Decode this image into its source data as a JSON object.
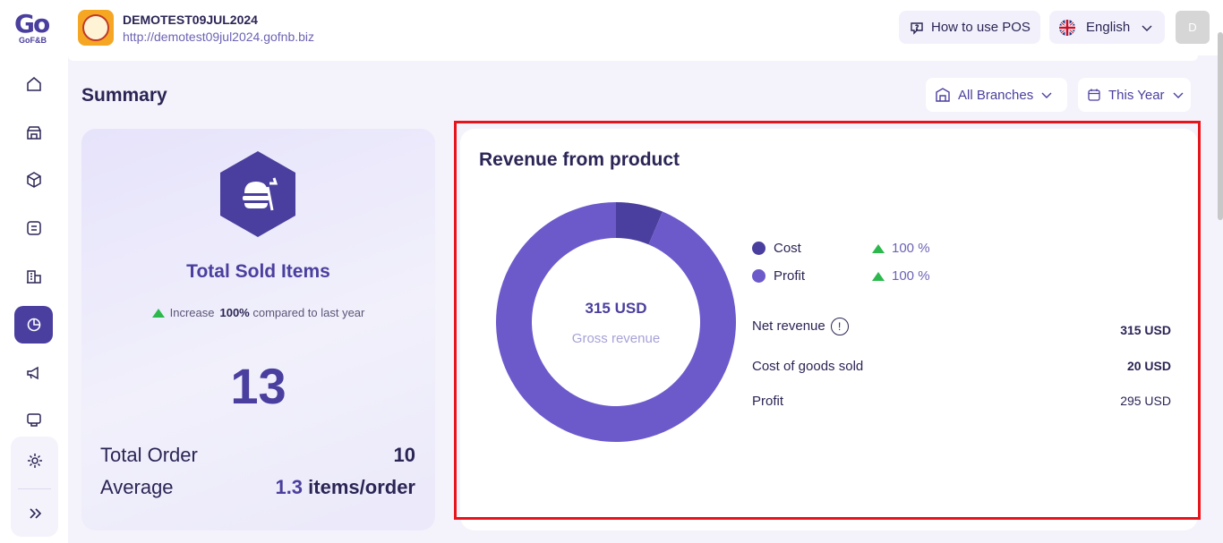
{
  "brand": {
    "logo_text": "Go",
    "logo_sub": "GoF&B"
  },
  "header": {
    "store_name": "DEMOTEST09JUL2024",
    "store_url": "http://demotest09jul2024.gofnb.biz",
    "help_label": "How to use POS",
    "language_label": "English",
    "avatar_initial": "D"
  },
  "sidebar": {
    "items": [
      {
        "icon": "home-icon"
      },
      {
        "icon": "store-icon"
      },
      {
        "icon": "box-icon"
      },
      {
        "icon": "list-icon"
      },
      {
        "icon": "building-icon"
      },
      {
        "icon": "report-icon",
        "active": true
      },
      {
        "icon": "megaphone-icon"
      },
      {
        "icon": "pos-icon"
      },
      {
        "icon": "settings-icon"
      },
      {
        "icon": "expand-icon"
      }
    ]
  },
  "summary": {
    "title": "Summary",
    "branch_filter": "All Branches",
    "period_filter": "This Year"
  },
  "sold_items": {
    "title": "Total Sold Items",
    "increase_prefix": "Increase",
    "increase_value": "100%",
    "increase_suffix": "compared to last year",
    "total": "13",
    "total_order_label": "Total Order",
    "total_order_value": "10",
    "average_label": "Average",
    "average_value": "1.3",
    "average_unit": "items/order"
  },
  "revenue": {
    "title": "Revenue from product",
    "gross_value": "315 USD",
    "gross_label": "Gross revenue",
    "legend": [
      {
        "name": "Cost",
        "pct": "100 %",
        "color": "#4a3f9e"
      },
      {
        "name": "Profit",
        "pct": "100 %",
        "color": "#6c5acb"
      }
    ],
    "stats": [
      {
        "label": "Net revenue",
        "value": "315 USD"
      },
      {
        "label": "Cost of goods sold",
        "value": "20 USD"
      },
      {
        "label": "Profit",
        "value": "295 USD"
      }
    ]
  },
  "chart_data": {
    "type": "pie",
    "categories": [
      "Cost",
      "Profit"
    ],
    "values": [
      20,
      295
    ],
    "colors": [
      "#4a3f9e",
      "#6c5acb"
    ]
  }
}
